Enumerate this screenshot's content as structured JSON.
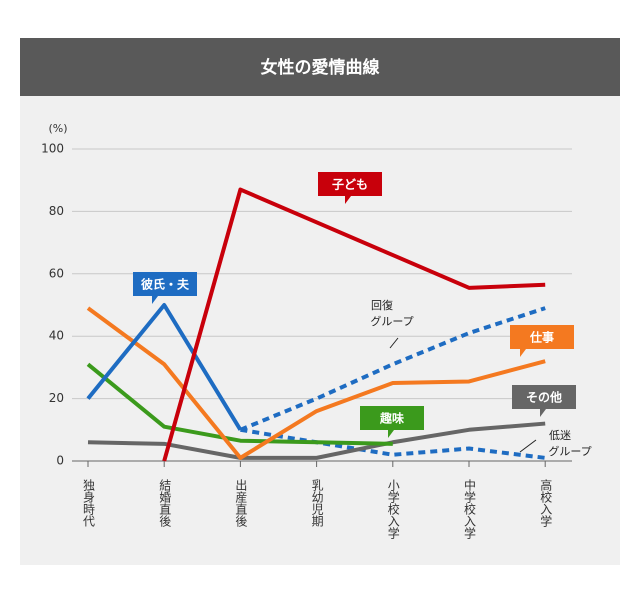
{
  "chart_data": {
    "type": "line",
    "title": "女性の愛情曲線",
    "y_unit": "(%)",
    "categories": [
      "独身時代",
      "結婚直後",
      "出産直後",
      "乳幼児期",
      "小学校入学",
      "中学校入学",
      "高校入学"
    ],
    "ylim": [
      0,
      100
    ],
    "yticks": [
      0,
      20,
      40,
      60,
      80,
      100
    ],
    "grid": true,
    "series": [
      {
        "name": "彼氏・夫",
        "color": "#1e6cc2",
        "style": "solid",
        "values": [
          20,
          50,
          10,
          null,
          null,
          null,
          null
        ]
      },
      {
        "name": "子ども",
        "color": "#c8000b",
        "style": "solid",
        "values": [
          null,
          0,
          87,
          76.5,
          66,
          55.5,
          56.5
        ]
      },
      {
        "name": "仕事",
        "color": "#f47920",
        "style": "solid",
        "values": [
          49,
          31,
          1,
          16,
          25,
          25.5,
          32
        ]
      },
      {
        "name": "趣味",
        "color": "#3b9a1c",
        "style": "solid",
        "values": [
          31,
          11,
          6.5,
          6,
          5.5,
          null,
          null
        ]
      },
      {
        "name": "その他",
        "color": "#666666",
        "style": "solid",
        "values": [
          6,
          5.5,
          1,
          1,
          6,
          10,
          12
        ]
      },
      {
        "name": "回復グループ",
        "color": "#1e6cc2",
        "style": "dotted",
        "values": [
          null,
          null,
          10,
          20,
          31,
          41,
          49
        ]
      },
      {
        "name": "低迷グループ",
        "color": "#1e6cc2",
        "style": "dotted",
        "values": [
          null,
          null,
          10,
          6,
          2,
          4,
          1
        ]
      }
    ]
  }
}
